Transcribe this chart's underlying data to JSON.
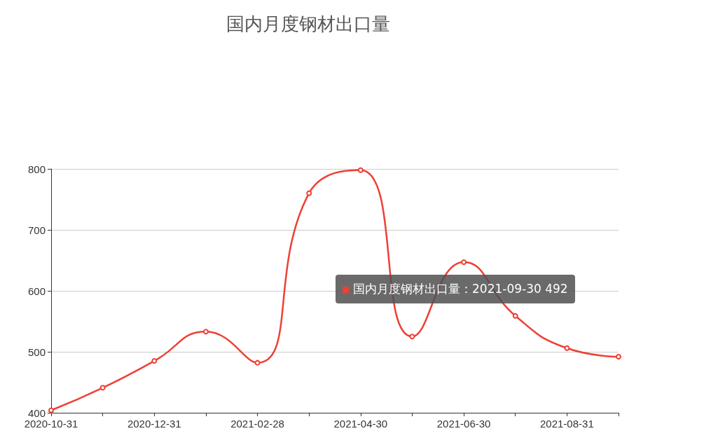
{
  "chart_data": {
    "type": "line",
    "title": "国内月度钢材出口量",
    "categories": [
      "2020-10-31",
      null,
      "2020-12-31",
      null,
      "2021-02-28",
      null,
      "2021-04-30",
      null,
      "2021-06-30",
      null,
      "2021-08-31",
      null
    ],
    "series": [
      {
        "color": "#ee4035",
        "values": [
          404,
          441,
          485,
          533,
          482,
          760,
          798,
          525,
          647,
          559,
          506,
          492
        ]
      }
    ],
    "ylim": [
      400,
      800
    ],
    "yticks": [
      400,
      500,
      600,
      700,
      800
    ],
    "grid": "y",
    "marker": "circle",
    "line_style": "solid",
    "annotations": [
      "国内月度钢材出口量：2021-09-30 492"
    ]
  }
}
